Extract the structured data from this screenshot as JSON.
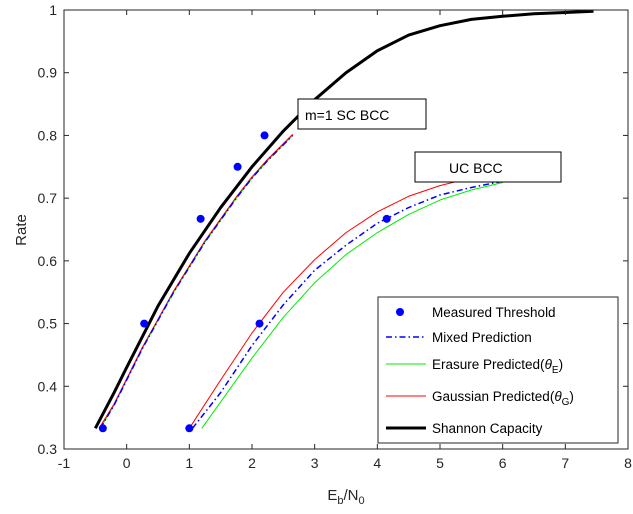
{
  "chart_data": {
    "type": "line",
    "xlabel": {
      "main": "E",
      "sub1": "b",
      "mid": "/N",
      "sub2": "0"
    },
    "ylabel": "Rate",
    "xlim": [
      -1,
      8
    ],
    "ylim": [
      0.3,
      1
    ],
    "xticks": [
      -1,
      0,
      1,
      2,
      3,
      4,
      5,
      6,
      7,
      8
    ],
    "yticks": [
      0.3,
      0.4,
      0.5,
      0.6,
      0.7,
      0.8,
      0.9,
      1
    ],
    "xtick_labels": [
      "-1",
      "0",
      "1",
      "2",
      "3",
      "4",
      "5",
      "6",
      "7",
      "8"
    ],
    "ytick_labels": [
      "0.3",
      "0.4",
      "0.5",
      "0.6",
      "0.7",
      "0.8",
      "0.9",
      "1"
    ],
    "grid": false,
    "legend_position": "bottom-right",
    "annotations": [
      {
        "text": "m=1 SC BCC",
        "x": 3.5,
        "y": 0.829
      },
      {
        "text": "UC BCC",
        "x": 4.8,
        "y": 0.746
      }
    ],
    "series": [
      {
        "name": "Measured Threshold",
        "style": "markers",
        "color": "#0000ff",
        "groups": [
          [
            [
              -0.38,
              0.333
            ],
            [
              0.28,
              0.5
            ],
            [
              1.18,
              0.667
            ],
            [
              1.77,
              0.75
            ],
            [
              2.2,
              0.8
            ]
          ],
          [
            [
              1.0,
              0.333
            ],
            [
              2.12,
              0.5
            ],
            [
              4.15,
              0.667
            ]
          ]
        ]
      },
      {
        "name": "Mixed Prediction",
        "style": "dashdot",
        "color": "#0000ff",
        "groups": [
          [
            [
              -0.42,
              0.333
            ],
            [
              -0.2,
              0.37
            ],
            [
              0.0,
              0.41
            ],
            [
              0.25,
              0.46
            ],
            [
              0.5,
              0.505
            ],
            [
              0.75,
              0.55
            ],
            [
              1.0,
              0.59
            ],
            [
              1.25,
              0.63
            ],
            [
              1.5,
              0.665
            ],
            [
              1.75,
              0.7
            ],
            [
              2.0,
              0.732
            ],
            [
              2.25,
              0.76
            ],
            [
              2.5,
              0.785
            ],
            [
              2.65,
              0.8
            ]
          ],
          [
            [
              1.05,
              0.333
            ],
            [
              1.5,
              0.39
            ],
            [
              2.0,
              0.465
            ],
            [
              2.5,
              0.53
            ],
            [
              3.0,
              0.585
            ],
            [
              3.5,
              0.625
            ],
            [
              4.0,
              0.66
            ],
            [
              4.5,
              0.685
            ],
            [
              5.0,
              0.705
            ],
            [
              5.5,
              0.717
            ],
            [
              6.0,
              0.727
            ]
          ]
        ]
      },
      {
        "name": "Erasure Predicted(θ_E)",
        "style": "solid",
        "color": "#00ee00",
        "groups": [
          [
            [
              -0.42,
              0.333
            ],
            [
              -0.2,
              0.37
            ],
            [
              0.0,
              0.41
            ],
            [
              0.25,
              0.46
            ],
            [
              0.5,
              0.505
            ],
            [
              0.75,
              0.55
            ],
            [
              1.0,
              0.59
            ],
            [
              1.25,
              0.63
            ],
            [
              1.5,
              0.665
            ],
            [
              1.75,
              0.7
            ],
            [
              2.0,
              0.732
            ],
            [
              2.25,
              0.76
            ],
            [
              2.5,
              0.785
            ],
            [
              2.65,
              0.8
            ]
          ],
          [
            [
              1.2,
              0.333
            ],
            [
              1.5,
              0.375
            ],
            [
              2.0,
              0.445
            ],
            [
              2.5,
              0.51
            ],
            [
              3.0,
              0.565
            ],
            [
              3.5,
              0.61
            ],
            [
              4.0,
              0.645
            ],
            [
              4.5,
              0.674
            ],
            [
              5.0,
              0.697
            ],
            [
              5.5,
              0.713
            ],
            [
              6.0,
              0.725
            ]
          ]
        ]
      },
      {
        "name": "Gaussian Predicted(θ_G)",
        "style": "solid",
        "color": "#ff0000",
        "groups": [
          [
            [
              -0.44,
              0.333
            ],
            [
              -0.2,
              0.372
            ],
            [
              0.0,
              0.412
            ],
            [
              0.25,
              0.462
            ],
            [
              0.5,
              0.507
            ],
            [
              0.75,
              0.552
            ],
            [
              1.0,
              0.592
            ],
            [
              1.25,
              0.632
            ],
            [
              1.5,
              0.667
            ],
            [
              1.75,
              0.702
            ],
            [
              2.0,
              0.734
            ],
            [
              2.25,
              0.762
            ],
            [
              2.5,
              0.787
            ],
            [
              2.65,
              0.802
            ]
          ],
          [
            [
              1.0,
              0.333
            ],
            [
              1.5,
              0.41
            ],
            [
              2.0,
              0.485
            ],
            [
              2.5,
              0.55
            ],
            [
              3.0,
              0.602
            ],
            [
              3.5,
              0.645
            ],
            [
              4.0,
              0.678
            ],
            [
              4.5,
              0.703
            ],
            [
              5.0,
              0.72
            ],
            [
              5.4,
              0.73
            ]
          ]
        ]
      },
      {
        "name": "Shannon Capacity",
        "style": "thick",
        "color": "#000000",
        "groups": [
          [
            [
              -0.5,
              0.333
            ],
            [
              -0.2,
              0.39
            ],
            [
              0.0,
              0.43
            ],
            [
              0.5,
              0.528
            ],
            [
              1.0,
              0.612
            ],
            [
              1.5,
              0.685
            ],
            [
              2.0,
              0.75
            ],
            [
              2.5,
              0.807
            ],
            [
              3.0,
              0.857
            ],
            [
              3.5,
              0.9
            ],
            [
              4.0,
              0.935
            ],
            [
              4.5,
              0.96
            ],
            [
              5.0,
              0.975
            ],
            [
              5.5,
              0.985
            ],
            [
              6.0,
              0.99
            ],
            [
              6.5,
              0.994
            ],
            [
              7.0,
              0.996
            ],
            [
              7.45,
              0.998
            ]
          ]
        ]
      }
    ],
    "legend": {
      "entries": [
        {
          "label": "Measured Threshold"
        },
        {
          "label": "Mixed Prediction"
        },
        {
          "label_main": "Erasure Predicted(",
          "label_sym": "θ",
          "label_sub": "E",
          "label_end": ")"
        },
        {
          "label_main": "Gaussian Predicted(",
          "label_sym": "θ",
          "label_sub": "G",
          "label_end": ")"
        },
        {
          "label": "Shannon Capacity"
        }
      ]
    }
  }
}
